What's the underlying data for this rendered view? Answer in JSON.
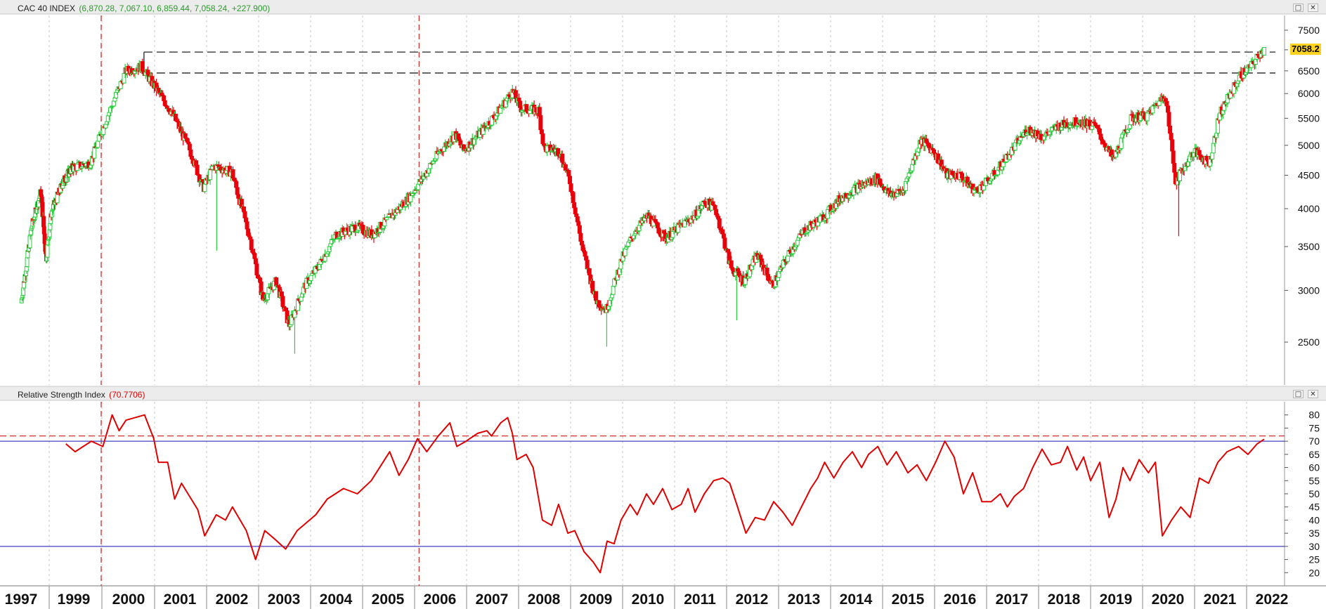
{
  "price_pane": {
    "title": "CAC 40 INDEX",
    "ohlc_text": "(6,870.28, 7,067.10, 6,859.44, 7,058.24, +227.900)",
    "last_price_label": "7058.2"
  },
  "rsi_pane": {
    "title": "Relative Strength Index",
    "value_text": "(70.7706)"
  },
  "icons": {
    "maximize": "maximize-icon",
    "close": "close-icon"
  },
  "colors": {
    "up": "#2ecc40",
    "down": "#e8000b",
    "rsi_line": "#e00000",
    "rsi_bands": "#4040c0",
    "dashed_marker": "#d43030",
    "badge": "#ffd21f"
  },
  "chart_data": [
    {
      "type": "candlestick",
      "title": "CAC 40 INDEX",
      "y_scale": "log",
      "ylim": [
        2150,
        7900
      ],
      "y_ticks": [
        2500,
        3000,
        3500,
        4000,
        4500,
        5000,
        5500,
        6000,
        6500,
        7000,
        7500
      ],
      "x_ticks": [
        "1997",
        "1999",
        "2000",
        "2001",
        "2002",
        "2003",
        "2004",
        "2005",
        "2006",
        "2007",
        "2008",
        "2009",
        "2010",
        "2011",
        "2012",
        "2013",
        "2014",
        "2015",
        "2016",
        "2017",
        "2018",
        "2019",
        "2020",
        "2021",
        "2022"
      ],
      "grid": "vertical-dashed",
      "anchors": [
        {
          "t": 1997.0,
          "v": 2870
        },
        {
          "t": 1997.4,
          "v": 3750
        },
        {
          "t": 1997.75,
          "v": 4250
        },
        {
          "t": 1997.95,
          "v": 3350
        },
        {
          "t": 1998.15,
          "v": 3950
        },
        {
          "t": 1998.6,
          "v": 4400
        },
        {
          "t": 1998.9,
          "v": 4600
        },
        {
          "t": 1999.3,
          "v": 4700
        },
        {
          "t": 1999.6,
          "v": 5500
        },
        {
          "t": 1999.95,
          "v": 6500
        },
        {
          "t": 2000.25,
          "v": 6600
        },
        {
          "t": 2000.6,
          "v": 6000
        },
        {
          "t": 2000.85,
          "v": 5600
        },
        {
          "t": 2001.2,
          "v": 4900
        },
        {
          "t": 2001.45,
          "v": 4300
        },
        {
          "t": 2001.65,
          "v": 4650
        },
        {
          "t": 2002.0,
          "v": 4550
        },
        {
          "t": 2002.35,
          "v": 3600
        },
        {
          "t": 2002.6,
          "v": 2900
        },
        {
          "t": 2002.85,
          "v": 3100
        },
        {
          "t": 2003.1,
          "v": 2650
        },
        {
          "t": 2003.4,
          "v": 3050
        },
        {
          "t": 2003.7,
          "v": 3300
        },
        {
          "t": 2004.0,
          "v": 3650
        },
        {
          "t": 2004.4,
          "v": 3750
        },
        {
          "t": 2004.7,
          "v": 3650
        },
        {
          "t": 2005.0,
          "v": 3850
        },
        {
          "t": 2005.4,
          "v": 4150
        },
        {
          "t": 2005.7,
          "v": 4500
        },
        {
          "t": 2006.0,
          "v": 4900
        },
        {
          "t": 2006.3,
          "v": 5200
        },
        {
          "t": 2006.45,
          "v": 4900
        },
        {
          "t": 2006.8,
          "v": 5250
        },
        {
          "t": 2007.1,
          "v": 5600
        },
        {
          "t": 2007.4,
          "v": 6050
        },
        {
          "t": 2007.55,
          "v": 5700
        },
        {
          "t": 2007.9,
          "v": 5650
        },
        {
          "t": 2008.0,
          "v": 4950
        },
        {
          "t": 2008.3,
          "v": 4900
        },
        {
          "t": 2008.5,
          "v": 4400
        },
        {
          "t": 2008.75,
          "v": 3450
        },
        {
          "t": 2009.0,
          "v": 2900
        },
        {
          "t": 2009.2,
          "v": 2800
        },
        {
          "t": 2009.5,
          "v": 3350
        },
        {
          "t": 2009.75,
          "v": 3700
        },
        {
          "t": 2010.0,
          "v": 3900
        },
        {
          "t": 2010.35,
          "v": 3600
        },
        {
          "t": 2010.6,
          "v": 3750
        },
        {
          "t": 2010.9,
          "v": 3900
        },
        {
          "t": 2011.1,
          "v": 4100
        },
        {
          "t": 2011.3,
          "v": 4000
        },
        {
          "t": 2011.6,
          "v": 3250
        },
        {
          "t": 2011.85,
          "v": 3100
        },
        {
          "t": 2012.1,
          "v": 3400
        },
        {
          "t": 2012.4,
          "v": 3050
        },
        {
          "t": 2012.7,
          "v": 3400
        },
        {
          "t": 2013.0,
          "v": 3700
        },
        {
          "t": 2013.4,
          "v": 3900
        },
        {
          "t": 2013.7,
          "v": 4150
        },
        {
          "t": 2014.0,
          "v": 4300
        },
        {
          "t": 2014.4,
          "v": 4450
        },
        {
          "t": 2014.65,
          "v": 4200
        },
        {
          "t": 2014.9,
          "v": 4250
        },
        {
          "t": 2015.25,
          "v": 5100
        },
        {
          "t": 2015.5,
          "v": 4900
        },
        {
          "t": 2015.75,
          "v": 4500
        },
        {
          "t": 2016.0,
          "v": 4500
        },
        {
          "t": 2016.3,
          "v": 4250
        },
        {
          "t": 2016.6,
          "v": 4450
        },
        {
          "t": 2016.95,
          "v": 4850
        },
        {
          "t": 2017.3,
          "v": 5300
        },
        {
          "t": 2017.6,
          "v": 5150
        },
        {
          "t": 2017.9,
          "v": 5350
        },
        {
          "t": 2018.3,
          "v": 5450
        },
        {
          "t": 2018.6,
          "v": 5350
        },
        {
          "t": 2018.95,
          "v": 4750
        },
        {
          "t": 2019.3,
          "v": 5500
        },
        {
          "t": 2019.6,
          "v": 5550
        },
        {
          "t": 2019.95,
          "v": 6000
        },
        {
          "t": 2020.15,
          "v": 4400
        },
        {
          "t": 2020.5,
          "v": 4900
        },
        {
          "t": 2020.8,
          "v": 4700
        },
        {
          "t": 2021.0,
          "v": 5600
        },
        {
          "t": 2021.4,
          "v": 6400
        },
        {
          "t": 2021.6,
          "v": 6600
        },
        {
          "t": 2021.75,
          "v": 6870
        },
        {
          "t": 2021.85,
          "v": 7058
        }
      ],
      "last_candle": {
        "open": 6870.28,
        "high": 7067.1,
        "low": 6859.44,
        "close": 7058.24,
        "change": 227.9
      },
      "notable_lows": [
        {
          "t": 2001.7,
          "v": 3450
        },
        {
          "t": 2003.2,
          "v": 2400
        },
        {
          "t": 2009.2,
          "v": 2460
        },
        {
          "t": 2011.7,
          "v": 2700
        },
        {
          "t": 2020.2,
          "v": 3630
        }
      ],
      "horizontal_levels": [
        6944,
        6450
      ],
      "marker_dates": [
        1999.5,
        2005.6
      ]
    },
    {
      "type": "line",
      "title": "Relative Strength Index",
      "last_value": 70.7706,
      "ylim": [
        15,
        85
      ],
      "y_ticks": [
        20,
        25,
        30,
        35,
        40,
        45,
        50,
        55,
        60,
        65,
        70,
        75,
        80
      ],
      "bands": [
        30,
        70
      ],
      "dashed_level": 72,
      "series": [
        {
          "points": [
            {
              "t": 1999.0,
              "v": 69
            },
            {
              "t": 1999.2,
              "v": 66
            },
            {
              "t": 1999.55,
              "v": 70
            },
            {
              "t": 1999.8,
              "v": 68
            },
            {
              "t": 2000.0,
              "v": 80
            },
            {
              "t": 2000.15,
              "v": 74
            },
            {
              "t": 2000.3,
              "v": 78
            },
            {
              "t": 2000.7,
              "v": 80
            },
            {
              "t": 2000.9,
              "v": 71
            },
            {
              "t": 2001.0,
              "v": 62
            },
            {
              "t": 2001.2,
              "v": 62
            },
            {
              "t": 2001.35,
              "v": 48
            },
            {
              "t": 2001.5,
              "v": 54
            },
            {
              "t": 2001.85,
              "v": 44
            },
            {
              "t": 2002.0,
              "v": 34
            },
            {
              "t": 2002.25,
              "v": 42
            },
            {
              "t": 2002.45,
              "v": 40
            },
            {
              "t": 2002.6,
              "v": 45
            },
            {
              "t": 2002.9,
              "v": 36
            },
            {
              "t": 2003.1,
              "v": 25
            },
            {
              "t": 2003.3,
              "v": 36
            },
            {
              "t": 2003.5,
              "v": 33
            },
            {
              "t": 2003.75,
              "v": 29
            },
            {
              "t": 2004.0,
              "v": 36
            },
            {
              "t": 2004.4,
              "v": 42
            },
            {
              "t": 2004.65,
              "v": 48
            },
            {
              "t": 2005.0,
              "v": 52
            },
            {
              "t": 2005.3,
              "v": 50
            },
            {
              "t": 2005.6,
              "v": 55
            },
            {
              "t": 2006.0,
              "v": 66
            },
            {
              "t": 2006.2,
              "v": 57
            },
            {
              "t": 2006.4,
              "v": 63
            },
            {
              "t": 2006.6,
              "v": 71
            },
            {
              "t": 2006.8,
              "v": 66
            },
            {
              "t": 2007.05,
              "v": 72
            },
            {
              "t": 2007.3,
              "v": 77
            },
            {
              "t": 2007.45,
              "v": 68
            },
            {
              "t": 2007.65,
              "v": 70
            },
            {
              "t": 2007.9,
              "v": 73
            },
            {
              "t": 2008.1,
              "v": 74
            },
            {
              "t": 2008.2,
              "v": 72
            },
            {
              "t": 2008.4,
              "v": 77
            },
            {
              "t": 2008.55,
              "v": 79
            },
            {
              "t": 2008.65,
              "v": 73
            },
            {
              "t": 2008.75,
              "v": 63
            },
            {
              "t": 2008.95,
              "v": 65
            },
            {
              "t": 2009.1,
              "v": 60
            },
            {
              "t": 2009.3,
              "v": 40
            },
            {
              "t": 2009.5,
              "v": 38
            },
            {
              "t": 2009.65,
              "v": 46
            },
            {
              "t": 2009.85,
              "v": 35
            },
            {
              "t": 2010.0,
              "v": 36
            },
            {
              "t": 2010.2,
              "v": 28
            },
            {
              "t": 2010.4,
              "v": 24
            },
            {
              "t": 2010.55,
              "v": 20
            },
            {
              "t": 2010.7,
              "v": 32
            },
            {
              "t": 2010.85,
              "v": 31
            },
            {
              "t": 2011.0,
              "v": 40
            },
            {
              "t": 2011.2,
              "v": 46
            },
            {
              "t": 2011.35,
              "v": 42
            },
            {
              "t": 2011.55,
              "v": 50
            },
            {
              "t": 2011.7,
              "v": 46
            },
            {
              "t": 2011.9,
              "v": 52
            },
            {
              "t": 2012.1,
              "v": 44
            },
            {
              "t": 2012.3,
              "v": 46
            },
            {
              "t": 2012.45,
              "v": 52
            },
            {
              "t": 2012.6,
              "v": 43
            },
            {
              "t": 2012.8,
              "v": 50
            },
            {
              "t": 2013.0,
              "v": 55
            },
            {
              "t": 2013.2,
              "v": 56
            },
            {
              "t": 2013.35,
              "v": 54
            },
            {
              "t": 2013.5,
              "v": 46
            },
            {
              "t": 2013.7,
              "v": 35
            },
            {
              "t": 2013.9,
              "v": 41
            },
            {
              "t": 2014.1,
              "v": 40
            },
            {
              "t": 2014.3,
              "v": 47
            },
            {
              "t": 2014.5,
              "v": 43
            },
            {
              "t": 2014.7,
              "v": 38
            },
            {
              "t": 2014.9,
              "v": 45
            },
            {
              "t": 2015.1,
              "v": 52
            },
            {
              "t": 2015.25,
              "v": 56
            },
            {
              "t": 2015.4,
              "v": 62
            },
            {
              "t": 2015.6,
              "v": 56
            },
            {
              "t": 2015.8,
              "v": 62
            },
            {
              "t": 2016.0,
              "v": 66
            },
            {
              "t": 2016.2,
              "v": 60
            },
            {
              "t": 2016.35,
              "v": 65
            },
            {
              "t": 2016.55,
              "v": 68
            },
            {
              "t": 2016.75,
              "v": 61
            },
            {
              "t": 2016.95,
              "v": 66
            },
            {
              "t": 2017.2,
              "v": 58
            },
            {
              "t": 2017.4,
              "v": 61
            },
            {
              "t": 2017.6,
              "v": 55
            },
            {
              "t": 2017.8,
              "v": 62
            },
            {
              "t": 2018.0,
              "v": 70
            },
            {
              "t": 2018.2,
              "v": 64
            },
            {
              "t": 2018.4,
              "v": 50
            },
            {
              "t": 2018.6,
              "v": 58
            },
            {
              "t": 2018.8,
              "v": 47
            },
            {
              "t": 2019.0,
              "v": 47
            },
            {
              "t": 2019.2,
              "v": 50
            },
            {
              "t": 2019.35,
              "v": 45
            },
            {
              "t": 2019.5,
              "v": 49
            },
            {
              "t": 2019.7,
              "v": 52
            },
            {
              "t": 2019.9,
              "v": 60
            },
            {
              "t": 2020.1,
              "v": 67
            },
            {
              "t": 2020.3,
              "v": 61
            },
            {
              "t": 2020.5,
              "v": 62
            },
            {
              "t": 2020.65,
              "v": 68
            },
            {
              "t": 2020.85,
              "v": 59
            },
            {
              "t": 2021.0,
              "v": 64
            },
            {
              "t": 2021.15,
              "v": 55
            },
            {
              "t": 2021.35,
              "v": 62
            },
            {
              "t": 2021.55,
              "v": 41
            },
            {
              "t": 2021.7,
              "v": 48
            },
            {
              "t": 2021.85,
              "v": 60
            },
            {
              "t": 2022.0,
              "v": 55
            },
            {
              "t": 2022.2,
              "v": 63
            },
            {
              "t": 2022.4,
              "v": 58
            },
            {
              "t": 2022.55,
              "v": 62
            },
            {
              "t": 2022.7,
              "v": 34
            },
            {
              "t": 2022.9,
              "v": 40
            },
            {
              "t": 2023.1,
              "v": 45
            },
            {
              "t": 2023.3,
              "v": 41
            },
            {
              "t": 2023.5,
              "v": 56
            },
            {
              "t": 2023.7,
              "v": 54
            },
            {
              "t": 2023.9,
              "v": 62
            },
            {
              "t": 2024.1,
              "v": 66
            },
            {
              "t": 2024.35,
              "v": 68
            },
            {
              "t": 2024.55,
              "v": 65
            },
            {
              "t": 2024.75,
              "v": 69
            },
            {
              "t": 2024.9,
              "v": 70.77
            }
          ]
        }
      ]
    }
  ]
}
